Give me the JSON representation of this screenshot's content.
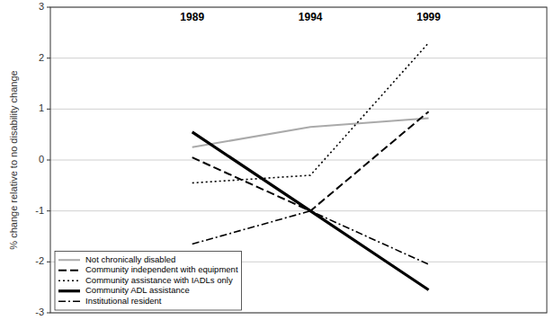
{
  "chart_data": {
    "type": "line",
    "y_label": "% change relative to no disability change",
    "x": [
      1989,
      1994,
      1999
    ],
    "xlim": [
      1983,
      2004
    ],
    "xticks": [
      1989,
      1994,
      1999
    ],
    "ylim": [
      -3,
      3
    ],
    "yticks": [
      -3,
      -2,
      -1,
      0,
      1,
      2,
      3
    ],
    "grid": "y",
    "legend": "lower left",
    "series": [
      {
        "name": "Not chronically disabled",
        "color": "#aaaaaa",
        "line_style": "solid",
        "values": [
          0.25,
          0.65,
          0.82
        ]
      },
      {
        "name": "Community independent with equipment",
        "color": "#000000",
        "line_style": "dashed",
        "values": [
          0.05,
          -1.0,
          0.95
        ]
      },
      {
        "name": "Community assistance with IADLs only",
        "color": "#000000",
        "line_style": "dotted",
        "values": [
          -0.45,
          -0.3,
          2.3
        ]
      },
      {
        "name": "Community ADL assistance",
        "color": "#000000",
        "line_style": "solid",
        "values": [
          0.55,
          -1.0,
          -2.55
        ]
      },
      {
        "name": "Institutional resident",
        "color": "#000000",
        "line_style": "dashdot",
        "values": [
          -1.65,
          -1.0,
          -2.05
        ]
      }
    ]
  }
}
